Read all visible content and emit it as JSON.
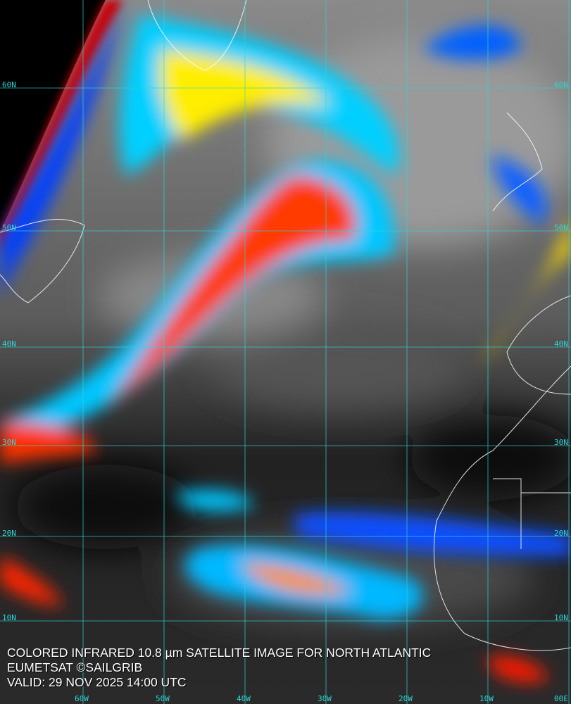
{
  "caption": {
    "title": "COLORED INFRARED 10.8 µm SATELLITE IMAGE FOR NORTH ATLANTIC",
    "source": "EUMETSAT ©SAILGRIB",
    "valid": "VALID:  29 NOV 2025 14:00 UTC"
  },
  "grid": {
    "color": "#2fd6d6",
    "latitudes": [
      "60N",
      "50N",
      "40N",
      "30N",
      "20N",
      "10N"
    ],
    "longitudes": [
      "60W",
      "50W",
      "40W",
      "30W",
      "20W",
      "10W",
      "00E"
    ]
  },
  "colors": {
    "cold_top": "#ff2000",
    "warm_band": "#ffee00",
    "mid": "#00e0ff",
    "low": "#0030ff",
    "coastline": "#ffffff"
  }
}
